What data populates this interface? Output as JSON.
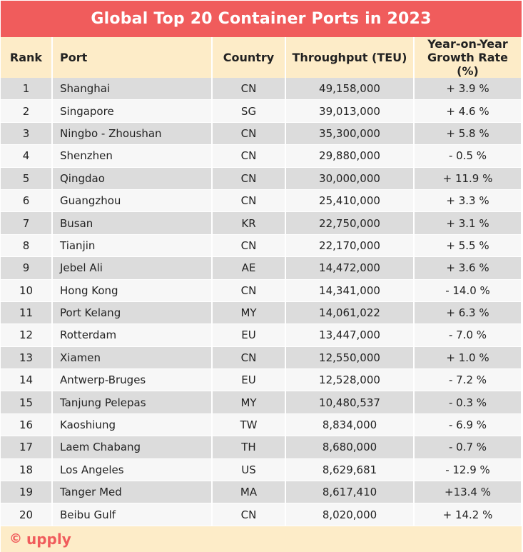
{
  "title": "Global Top 20 Container Ports in 2023",
  "headers": {
    "rank": "Rank",
    "port": "Port",
    "country": "Country",
    "throughput": "Throughput (TEU)",
    "growth_line1": "Year-on-Year",
    "growth_line2": "Growth Rate (%)"
  },
  "rows": [
    {
      "rank": "1",
      "port": "Shanghai",
      "country": "CN",
      "throughput": "49,158,000",
      "growth": "+ 3.9 %"
    },
    {
      "rank": "2",
      "port": "Singapore",
      "country": "SG",
      "throughput": "39,013,000",
      "growth": "+ 4.6 %"
    },
    {
      "rank": "3",
      "port": "Ningbo - Zhoushan",
      "country": "CN",
      "throughput": "35,300,000",
      "growth": "+ 5.8 %"
    },
    {
      "rank": "4",
      "port": "Shenzhen",
      "country": "CN",
      "throughput": "29,880,000",
      "growth": "- 0.5 %"
    },
    {
      "rank": "5",
      "port": "Qingdao",
      "country": "CN",
      "throughput": "30,000,000",
      "growth": "+ 11.9 %"
    },
    {
      "rank": "6",
      "port": "Guangzhou",
      "country": "CN",
      "throughput": "25,410,000",
      "growth": "+ 3.3 %"
    },
    {
      "rank": "7",
      "port": "Busan",
      "country": "KR",
      "throughput": "22,750,000",
      "growth": "+ 3.1 %"
    },
    {
      "rank": "8",
      "port": "Tianjin",
      "country": "CN",
      "throughput": "22,170,000",
      "growth": "+ 5.5 %"
    },
    {
      "rank": "9",
      "port": "Jebel Ali",
      "country": "AE",
      "throughput": "14,472,000",
      "growth": "+ 3.6 %"
    },
    {
      "rank": "10",
      "port": "Hong Kong",
      "country": "CN",
      "throughput": "14,341,000",
      "growth": "-  14.0 %"
    },
    {
      "rank": "11",
      "port": "Port Kelang",
      "country": "MY",
      "throughput": "14,061,022",
      "growth": "+ 6.3 %"
    },
    {
      "rank": "12",
      "port": "Rotterdam",
      "country": "EU",
      "throughput": "13,447,000",
      "growth": "- 7.0 %"
    },
    {
      "rank": "13",
      "port": "Xiamen",
      "country": "CN",
      "throughput": "12,550,000",
      "growth": "+ 1.0 %"
    },
    {
      "rank": "14",
      "port": "Antwerp-Bruges",
      "country": "EU",
      "throughput": "12,528,000",
      "growth": "- 7.2 %"
    },
    {
      "rank": "15",
      "port": "Tanjung Pelepas",
      "country": "MY",
      "throughput": "10,480,537",
      "growth": "- 0.3 %"
    },
    {
      "rank": "16",
      "port": "Kaoshiung",
      "country": "TW",
      "throughput": "8,834,000",
      "growth": "- 6.9 %"
    },
    {
      "rank": "17",
      "port": "Laem Chabang",
      "country": "TH",
      "throughput": "8,680,000",
      "growth": "- 0.7 %"
    },
    {
      "rank": "18",
      "port": "Los Angeles",
      "country": "US",
      "throughput": "8,629,681",
      "growth": "- 12.9 %"
    },
    {
      "rank": "19",
      "port": "Tanger Med",
      "country": "MA",
      "throughput": "8,617,410",
      "growth": "+13.4 %"
    },
    {
      "rank": "20",
      "port": "Beibu Gulf",
      "country": "CN",
      "throughput": "8,020,000",
      "growth": "+ 14.2 %"
    }
  ],
  "footer": {
    "copyright_symbol": "©",
    "brand": "upply"
  },
  "colors": {
    "title_bg": "#f05c5c",
    "header_bg": "#fdecc8",
    "row_odd": "#dcdcdc",
    "row_even": "#f7f7f7",
    "brand": "#f05c5c"
  },
  "chart_data": {
    "type": "table",
    "title": "Global Top 20 Container Ports in 2023",
    "columns": [
      "Rank",
      "Port",
      "Country",
      "Throughput (TEU)",
      "Year-on-Year Growth Rate (%)"
    ],
    "rows": [
      [
        1,
        "Shanghai",
        "CN",
        49158000,
        3.9
      ],
      [
        2,
        "Singapore",
        "SG",
        39013000,
        4.6
      ],
      [
        3,
        "Ningbo - Zhoushan",
        "CN",
        35300000,
        5.8
      ],
      [
        4,
        "Shenzhen",
        "CN",
        29880000,
        -0.5
      ],
      [
        5,
        "Qingdao",
        "CN",
        30000000,
        11.9
      ],
      [
        6,
        "Guangzhou",
        "CN",
        25410000,
        3.3
      ],
      [
        7,
        "Busan",
        "KR",
        22750000,
        3.1
      ],
      [
        8,
        "Tianjin",
        "CN",
        22170000,
        5.5
      ],
      [
        9,
        "Jebel Ali",
        "AE",
        14472000,
        3.6
      ],
      [
        10,
        "Hong Kong",
        "CN",
        14341000,
        -14.0
      ],
      [
        11,
        "Port Kelang",
        "MY",
        14061022,
        6.3
      ],
      [
        12,
        "Rotterdam",
        "EU",
        13447000,
        -7.0
      ],
      [
        13,
        "Xiamen",
        "CN",
        12550000,
        1.0
      ],
      [
        14,
        "Antwerp-Bruges",
        "EU",
        12528000,
        -7.2
      ],
      [
        15,
        "Tanjung Pelepas",
        "MY",
        10480537,
        -0.3
      ],
      [
        16,
        "Kaoshiung",
        "TW",
        8834000,
        -6.9
      ],
      [
        17,
        "Laem Chabang",
        "TH",
        8680000,
        -0.7
      ],
      [
        18,
        "Los Angeles",
        "US",
        8629681,
        -12.9
      ],
      [
        19,
        "Tanger Med",
        "MA",
        8617410,
        13.4
      ],
      [
        20,
        "Beibu Gulf",
        "CN",
        8020000,
        14.2
      ]
    ]
  }
}
